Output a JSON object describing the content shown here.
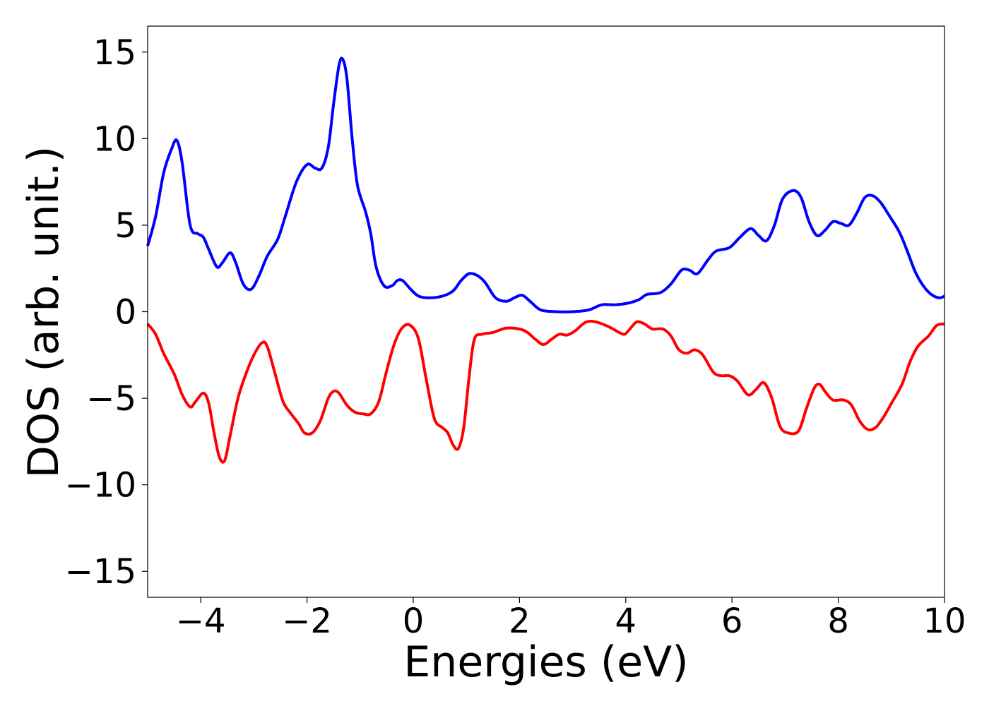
{
  "chart_data": {
    "type": "line",
    "title": "",
    "xlabel": "Energies (eV)",
    "ylabel": "DOS (arb. unit.)",
    "xlim": [
      -5,
      10
    ],
    "ylim": [
      -16.5,
      16.5
    ],
    "grid": false,
    "x_ticks": [
      -4,
      -2,
      0,
      2,
      4,
      6,
      8,
      10
    ],
    "x_tick_labels": [
      "−4",
      "−2",
      "0",
      "2",
      "4",
      "6",
      "8",
      "10"
    ],
    "y_ticks": [
      15,
      10,
      5,
      0,
      -5,
      -10,
      -15
    ],
    "y_tick_labels": [
      "15",
      "10",
      "5",
      "0",
      "−5",
      "−10",
      "−15"
    ],
    "series": [
      {
        "color": "#0000ff",
        "points": [
          [
            -5.0,
            3.8
          ],
          [
            -4.85,
            5.5
          ],
          [
            -4.7,
            8.0
          ],
          [
            -4.55,
            9.4
          ],
          [
            -4.45,
            9.9
          ],
          [
            -4.35,
            8.6
          ],
          [
            -4.2,
            5.0
          ],
          [
            -4.05,
            4.5
          ],
          [
            -3.95,
            4.3
          ],
          [
            -3.85,
            3.6
          ],
          [
            -3.7,
            2.6
          ],
          [
            -3.6,
            2.8
          ],
          [
            -3.45,
            3.4
          ],
          [
            -3.35,
            2.9
          ],
          [
            -3.2,
            1.6
          ],
          [
            -3.05,
            1.3
          ],
          [
            -2.9,
            2.1
          ],
          [
            -2.75,
            3.2
          ],
          [
            -2.55,
            4.2
          ],
          [
            -2.4,
            5.6
          ],
          [
            -2.2,
            7.5
          ],
          [
            -2.0,
            8.5
          ],
          [
            -1.85,
            8.3
          ],
          [
            -1.72,
            8.3
          ],
          [
            -1.6,
            9.5
          ],
          [
            -1.5,
            12.0
          ],
          [
            -1.4,
            14.2
          ],
          [
            -1.33,
            14.6
          ],
          [
            -1.25,
            13.5
          ],
          [
            -1.15,
            10.0
          ],
          [
            -1.05,
            7.3
          ],
          [
            -0.9,
            5.8
          ],
          [
            -0.8,
            4.5
          ],
          [
            -0.7,
            2.6
          ],
          [
            -0.55,
            1.5
          ],
          [
            -0.4,
            1.5
          ],
          [
            -0.3,
            1.8
          ],
          [
            -0.2,
            1.8
          ],
          [
            -0.05,
            1.3
          ],
          [
            0.1,
            0.9
          ],
          [
            0.3,
            0.8
          ],
          [
            0.55,
            0.9
          ],
          [
            0.75,
            1.2
          ],
          [
            0.9,
            1.8
          ],
          [
            1.05,
            2.2
          ],
          [
            1.2,
            2.1
          ],
          [
            1.35,
            1.7
          ],
          [
            1.55,
            0.8
          ],
          [
            1.75,
            0.6
          ],
          [
            1.9,
            0.8
          ],
          [
            2.05,
            0.95
          ],
          [
            2.2,
            0.6
          ],
          [
            2.4,
            0.1
          ],
          [
            2.7,
            0.0
          ],
          [
            3.0,
            0.0
          ],
          [
            3.3,
            0.1
          ],
          [
            3.55,
            0.4
          ],
          [
            3.8,
            0.4
          ],
          [
            4.05,
            0.5
          ],
          [
            4.25,
            0.7
          ],
          [
            4.4,
            1.0
          ],
          [
            4.65,
            1.1
          ],
          [
            4.85,
            1.6
          ],
          [
            5.05,
            2.4
          ],
          [
            5.2,
            2.4
          ],
          [
            5.35,
            2.2
          ],
          [
            5.55,
            3.0
          ],
          [
            5.7,
            3.5
          ],
          [
            5.95,
            3.7
          ],
          [
            6.15,
            4.3
          ],
          [
            6.35,
            4.8
          ],
          [
            6.5,
            4.4
          ],
          [
            6.65,
            4.1
          ],
          [
            6.8,
            5.0
          ],
          [
            6.95,
            6.5
          ],
          [
            7.15,
            7.0
          ],
          [
            7.3,
            6.6
          ],
          [
            7.45,
            5.2
          ],
          [
            7.6,
            4.4
          ],
          [
            7.75,
            4.7
          ],
          [
            7.9,
            5.2
          ],
          [
            8.05,
            5.1
          ],
          [
            8.2,
            5.0
          ],
          [
            8.35,
            5.7
          ],
          [
            8.5,
            6.6
          ],
          [
            8.65,
            6.7
          ],
          [
            8.8,
            6.3
          ],
          [
            8.95,
            5.6
          ],
          [
            9.15,
            4.6
          ],
          [
            9.3,
            3.5
          ],
          [
            9.45,
            2.3
          ],
          [
            9.6,
            1.5
          ],
          [
            9.75,
            1.0
          ],
          [
            9.9,
            0.8
          ],
          [
            10.0,
            0.9
          ]
        ]
      },
      {
        "color": "#ff0000",
        "points": [
          [
            -5.0,
            -0.7
          ],
          [
            -4.85,
            -1.3
          ],
          [
            -4.7,
            -2.4
          ],
          [
            -4.5,
            -3.6
          ],
          [
            -4.35,
            -4.8
          ],
          [
            -4.2,
            -5.5
          ],
          [
            -4.1,
            -5.2
          ],
          [
            -3.95,
            -4.7
          ],
          [
            -3.85,
            -5.3
          ],
          [
            -3.75,
            -7.0
          ],
          [
            -3.65,
            -8.4
          ],
          [
            -3.55,
            -8.6
          ],
          [
            -3.45,
            -7.2
          ],
          [
            -3.3,
            -5.0
          ],
          [
            -3.15,
            -3.6
          ],
          [
            -3.0,
            -2.5
          ],
          [
            -2.85,
            -1.8
          ],
          [
            -2.75,
            -2.0
          ],
          [
            -2.6,
            -3.6
          ],
          [
            -2.45,
            -5.2
          ],
          [
            -2.3,
            -5.9
          ],
          [
            -2.15,
            -6.5
          ],
          [
            -2.05,
            -7.0
          ],
          [
            -1.9,
            -7.0
          ],
          [
            -1.75,
            -6.3
          ],
          [
            -1.6,
            -5.0
          ],
          [
            -1.5,
            -4.6
          ],
          [
            -1.4,
            -4.7
          ],
          [
            -1.25,
            -5.4
          ],
          [
            -1.1,
            -5.8
          ],
          [
            -0.95,
            -5.9
          ],
          [
            -0.8,
            -5.9
          ],
          [
            -0.65,
            -5.2
          ],
          [
            -0.5,
            -3.4
          ],
          [
            -0.35,
            -1.8
          ],
          [
            -0.2,
            -0.9
          ],
          [
            -0.05,
            -0.8
          ],
          [
            0.1,
            -1.6
          ],
          [
            0.25,
            -4.0
          ],
          [
            0.4,
            -6.2
          ],
          [
            0.55,
            -6.7
          ],
          [
            0.65,
            -7.0
          ],
          [
            0.75,
            -7.7
          ],
          [
            0.85,
            -7.9
          ],
          [
            0.95,
            -6.7
          ],
          [
            1.05,
            -3.8
          ],
          [
            1.15,
            -1.6
          ],
          [
            1.3,
            -1.3
          ],
          [
            1.5,
            -1.2
          ],
          [
            1.75,
            -0.95
          ],
          [
            2.0,
            -1.0
          ],
          [
            2.15,
            -1.2
          ],
          [
            2.3,
            -1.6
          ],
          [
            2.45,
            -1.9
          ],
          [
            2.6,
            -1.6
          ],
          [
            2.75,
            -1.3
          ],
          [
            2.9,
            -1.35
          ],
          [
            3.05,
            -1.1
          ],
          [
            3.25,
            -0.6
          ],
          [
            3.45,
            -0.6
          ],
          [
            3.7,
            -0.9
          ],
          [
            3.95,
            -1.3
          ],
          [
            4.05,
            -1.1
          ],
          [
            4.2,
            -0.6
          ],
          [
            4.35,
            -0.7
          ],
          [
            4.5,
            -1.0
          ],
          [
            4.7,
            -1.0
          ],
          [
            4.85,
            -1.4
          ],
          [
            5.0,
            -2.2
          ],
          [
            5.15,
            -2.4
          ],
          [
            5.3,
            -2.2
          ],
          [
            5.45,
            -2.5
          ],
          [
            5.65,
            -3.5
          ],
          [
            5.8,
            -3.7
          ],
          [
            5.95,
            -3.7
          ],
          [
            6.1,
            -4.0
          ],
          [
            6.3,
            -4.8
          ],
          [
            6.45,
            -4.5
          ],
          [
            6.6,
            -4.1
          ],
          [
            6.75,
            -5.0
          ],
          [
            6.9,
            -6.6
          ],
          [
            7.05,
            -7.0
          ],
          [
            7.25,
            -6.9
          ],
          [
            7.4,
            -5.6
          ],
          [
            7.55,
            -4.4
          ],
          [
            7.65,
            -4.2
          ],
          [
            7.75,
            -4.6
          ],
          [
            7.9,
            -5.1
          ],
          [
            8.1,
            -5.1
          ],
          [
            8.25,
            -5.4
          ],
          [
            8.4,
            -6.3
          ],
          [
            8.55,
            -6.8
          ],
          [
            8.7,
            -6.7
          ],
          [
            8.85,
            -6.1
          ],
          [
            9.0,
            -5.3
          ],
          [
            9.2,
            -4.2
          ],
          [
            9.35,
            -2.9
          ],
          [
            9.5,
            -2.0
          ],
          [
            9.7,
            -1.4
          ],
          [
            9.85,
            -0.8
          ],
          [
            10.0,
            -0.7
          ]
        ]
      }
    ]
  }
}
